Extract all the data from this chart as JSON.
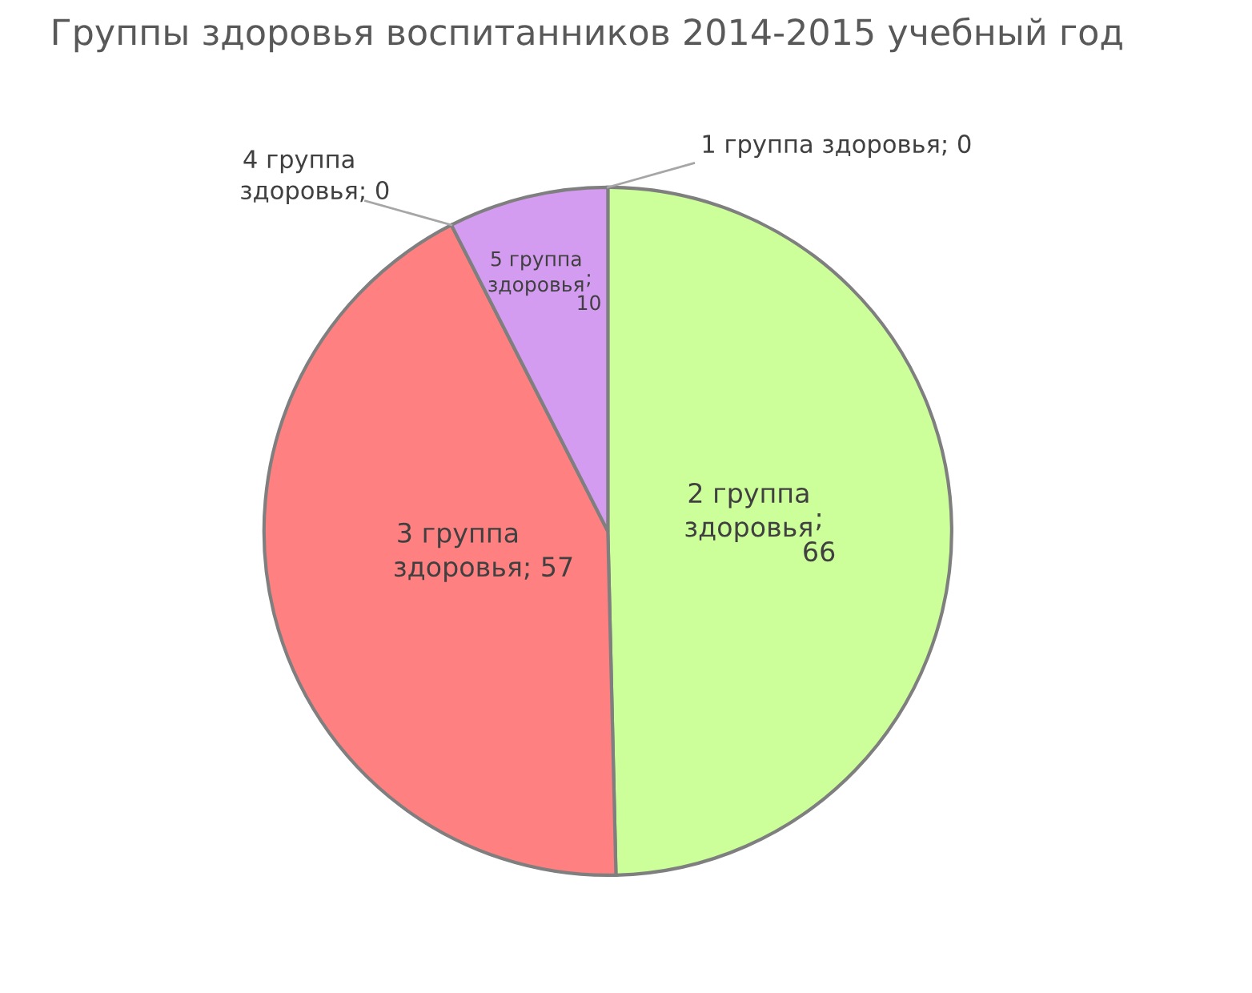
{
  "chart_data": {
    "type": "pie",
    "title": "Группы здоровья воспитанников 2014-2015 учебный год",
    "categories": [
      "1 группа здоровья",
      "2 группа\nздоровья",
      "3 группа\nздоровья",
      "4 группа\nздоровья",
      "5 группа\nздоровья"
    ],
    "values": [
      0,
      66,
      57,
      0,
      10
    ],
    "colors": [
      "#4f81bd",
      "#ccff99",
      "#ff8080",
      "#9bbb59",
      "#d49cf0"
    ],
    "value_labels": [
      "; 0",
      ";\n66",
      "; 57",
      "; 0",
      ";\n10"
    ]
  }
}
